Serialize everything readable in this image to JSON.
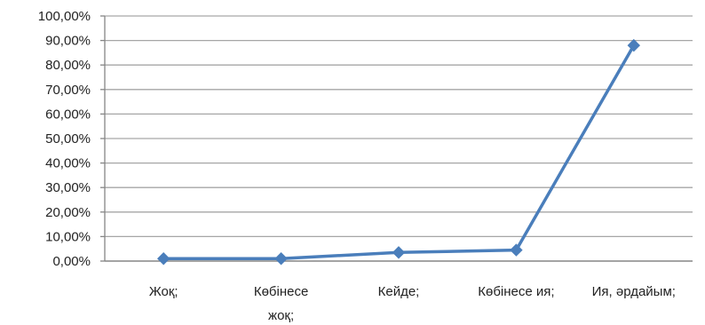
{
  "chart_data": {
    "type": "line",
    "title": "",
    "xlabel": "",
    "ylabel": "",
    "categories": [
      [
        "Жоқ;"
      ],
      [
        "Көбінесе",
        "жоқ;"
      ],
      [
        "Кейде;"
      ],
      [
        "Көбінесе ия;"
      ],
      [
        "Ия, әрдайым;"
      ]
    ],
    "series": [
      {
        "values": [
          1.0,
          1.0,
          3.5,
          4.5,
          88.0
        ]
      }
    ],
    "yticks": [
      "0,00%",
      "10,00%",
      "20,00%",
      "30,00%",
      "40,00%",
      "50,00%",
      "60,00%",
      "70,00%",
      "80,00%",
      "90,00%",
      "100,00%"
    ],
    "ylim": [
      0,
      100
    ],
    "y_unit": "%",
    "grid": true,
    "legend": "none",
    "colors": {
      "series": "#4a7ebb",
      "grid": "#a6a6a6",
      "axis": "#868686"
    }
  }
}
